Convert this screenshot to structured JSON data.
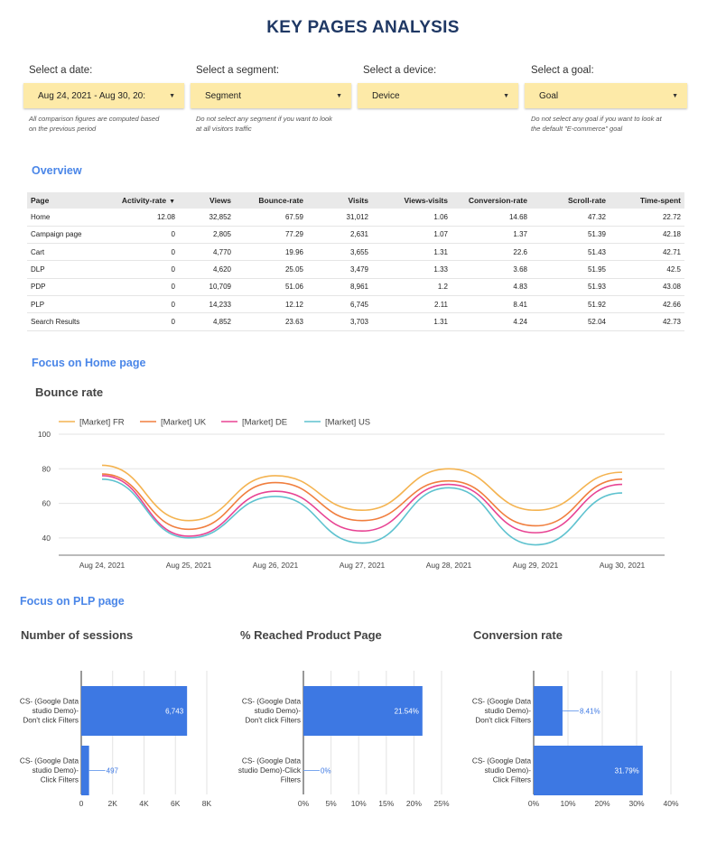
{
  "page_title": "KEY PAGES ANALYSIS",
  "controls": [
    {
      "label": "Select a date:",
      "value": "Aug 24, 2021 - Aug 30, 20:",
      "note": [
        "All comparison figures are computed based",
        "on the previous period"
      ]
    },
    {
      "label": "Select a segment:",
      "value": "Segment",
      "note": [
        "Do not select any segment if you want to look",
        "at all visitors traffic"
      ]
    },
    {
      "label": "Select a device:",
      "value": "Device",
      "note": []
    },
    {
      "label": "Select a goal:",
      "value": "Goal",
      "note": [
        "Do not select any goal if you want to look at",
        "the default \"E-commerce\" goal"
      ]
    }
  ],
  "overview": {
    "heading": "Overview",
    "columns": [
      "Page",
      "Activity-rate",
      "Views",
      "Bounce-rate",
      "Visits",
      "Views-visits",
      "Conversion-rate",
      "Scroll-rate",
      "Time-spent"
    ],
    "sort_icon": "caret-down",
    "rows": [
      [
        "Home",
        "12.08",
        "32,852",
        "67.59",
        "31,012",
        "1.06",
        "14.68",
        "47.32",
        "22.72"
      ],
      [
        "Campaign page",
        "0",
        "2,805",
        "77.29",
        "2,631",
        "1.07",
        "1.37",
        "51.39",
        "42.18"
      ],
      [
        "Cart",
        "0",
        "4,770",
        "19.96",
        "3,655",
        "1.31",
        "22.6",
        "51.43",
        "42.71"
      ],
      [
        "DLP",
        "0",
        "4,620",
        "25.05",
        "3,479",
        "1.33",
        "3.68",
        "51.95",
        "42.5"
      ],
      [
        "PDP",
        "0",
        "10,709",
        "51.06",
        "8,961",
        "1.2",
        "4.83",
        "51.93",
        "43.08"
      ],
      [
        "PLP",
        "0",
        "14,233",
        "12.12",
        "6,745",
        "2.11",
        "8.41",
        "51.92",
        "42.66"
      ],
      [
        "Search Results",
        "0",
        "4,852",
        "23.63",
        "3,703",
        "1.31",
        "4.24",
        "52.04",
        "42.73"
      ]
    ]
  },
  "home_focus": {
    "heading": "Focus on Home page",
    "chart_title": "Bounce rate"
  },
  "plp_focus": {
    "heading": "Focus on PLP page"
  },
  "chart_data": [
    {
      "type": "line",
      "title": "Bounce rate",
      "x": [
        "Aug 24, 2021",
        "Aug 25, 2021",
        "Aug 26, 2021",
        "Aug 27, 2021",
        "Aug 28, 2021",
        "Aug 29, 2021",
        "Aug 30, 2021"
      ],
      "ylim": [
        30,
        100
      ],
      "yticks": [
        40,
        60,
        80,
        100
      ],
      "grid": true,
      "legend": "top-left",
      "series": [
        {
          "name": "[Market] FR",
          "color": "#f4b350",
          "values": [
            82,
            50,
            76,
            56,
            80,
            56,
            78
          ]
        },
        {
          "name": "[Market] UK",
          "color": "#f07e3e",
          "values": [
            77,
            45,
            72,
            50,
            73,
            47,
            74
          ]
        },
        {
          "name": "[Market] DE",
          "color": "#e84393",
          "values": [
            76,
            41,
            67,
            44,
            71,
            43,
            71
          ]
        },
        {
          "name": "[Market] US",
          "color": "#5ec2cf",
          "values": [
            74,
            40,
            64,
            37,
            69,
            36,
            66
          ]
        }
      ]
    },
    {
      "type": "bar",
      "orientation": "horizontal",
      "title": "Number of sessions",
      "categories": [
        "CS- (Google Data studio Demo)- Don't click Filters",
        "CS- (Google Data studio Demo)- Click Filters"
      ],
      "values": [
        6743,
        497
      ],
      "value_labels": [
        "6,743",
        "497"
      ],
      "xlim": [
        0,
        8000
      ],
      "xticks": [
        "0",
        "2K",
        "4K",
        "6K",
        "8K"
      ],
      "color": "#3d78e3"
    },
    {
      "type": "bar",
      "orientation": "horizontal",
      "title": "% Reached Product Page",
      "categories": [
        "CS- (Google Data studio Demo)- Don't click Filters",
        "CS- (Google Data studio Demo)-Click Filters"
      ],
      "values": [
        21.54,
        0
      ],
      "value_labels": [
        "21.54%",
        "0%"
      ],
      "xlim": [
        0,
        25
      ],
      "xticks": [
        "0%",
        "5%",
        "10%",
        "15%",
        "20%",
        "25%"
      ],
      "color": "#3d78e3"
    },
    {
      "type": "bar",
      "orientation": "horizontal",
      "title": "Conversion rate",
      "categories": [
        "CS- (Google Data studio Demo)- Don't click Filters",
        "CS- (Google Data studio Demo)- Click Filters"
      ],
      "values": [
        8.41,
        31.79
      ],
      "value_labels": [
        "8.41%",
        "31.79%"
      ],
      "xlim": [
        0,
        40
      ],
      "xticks": [
        "0%",
        "10%",
        "20%",
        "30%",
        "40%"
      ],
      "color": "#3d78e3"
    }
  ]
}
